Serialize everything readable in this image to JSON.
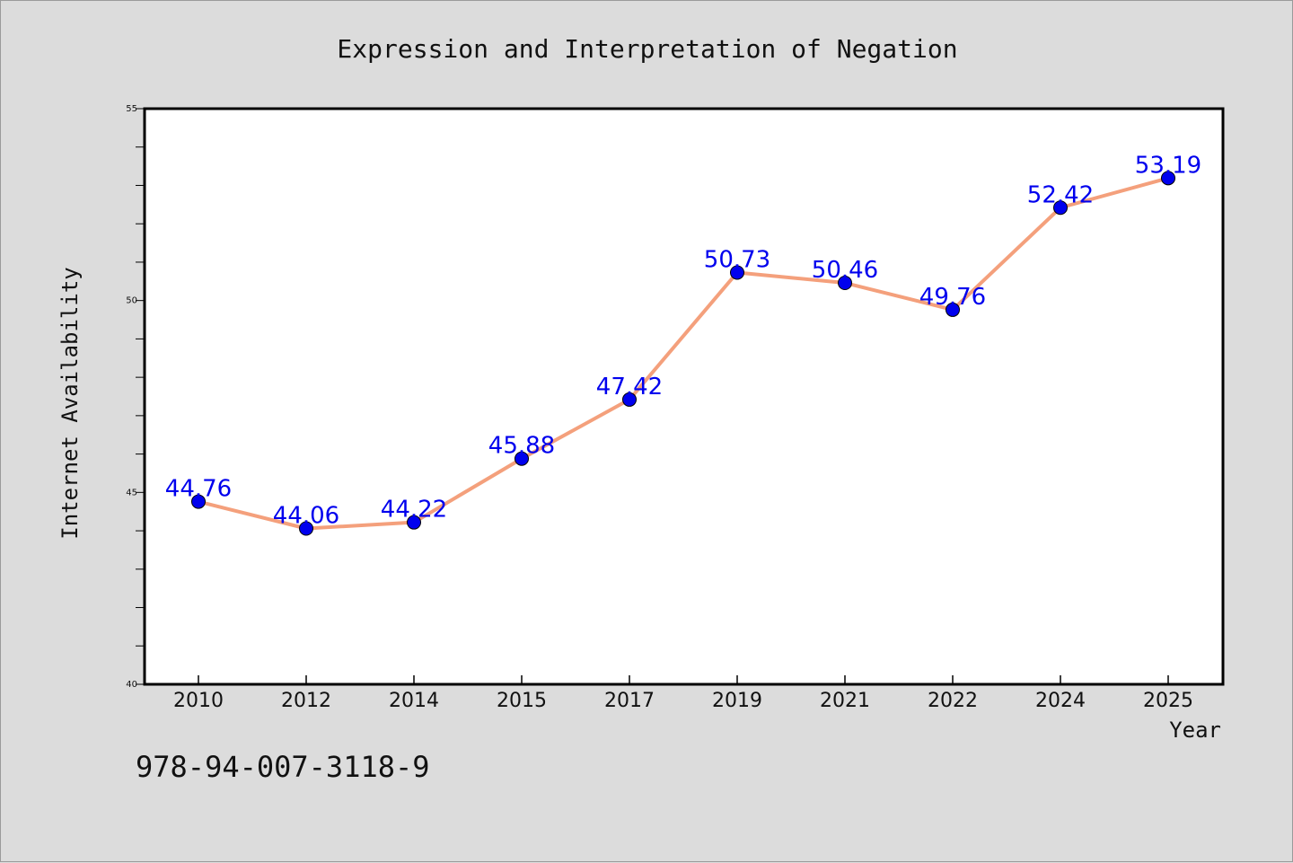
{
  "colors": {
    "background": "#dcdcdc",
    "plot_background": "#ffffff",
    "line": "#f4a07c",
    "marker": "#0000ee",
    "data_label": "#0000ee"
  },
  "footer": {
    "isbn": "978-94-007-3118-9"
  },
  "chart_data": {
    "type": "line",
    "title": "Expression and Interpretation of Negation",
    "xlabel": "Year",
    "ylabel": "Internet Availability",
    "categories": [
      "2010",
      "2012",
      "2014",
      "2015",
      "2017",
      "2019",
      "2021",
      "2022",
      "2024",
      "2025"
    ],
    "series": [
      {
        "values": [
          44.76,
          44.06,
          44.22,
          45.88,
          47.42,
          50.73,
          50.46,
          49.76,
          52.42,
          53.19
        ]
      }
    ],
    "data_labels": [
      "44.76",
      "44.06",
      "44.22",
      "45.88",
      "47.42",
      "50.73",
      "50.46",
      "49.76",
      "52.42",
      "53.19"
    ],
    "ylim": [
      40,
      55
    ],
    "yticks": [
      40,
      45,
      50,
      55
    ],
    "y_minor_step": 1,
    "grid": false,
    "legend": "none"
  }
}
